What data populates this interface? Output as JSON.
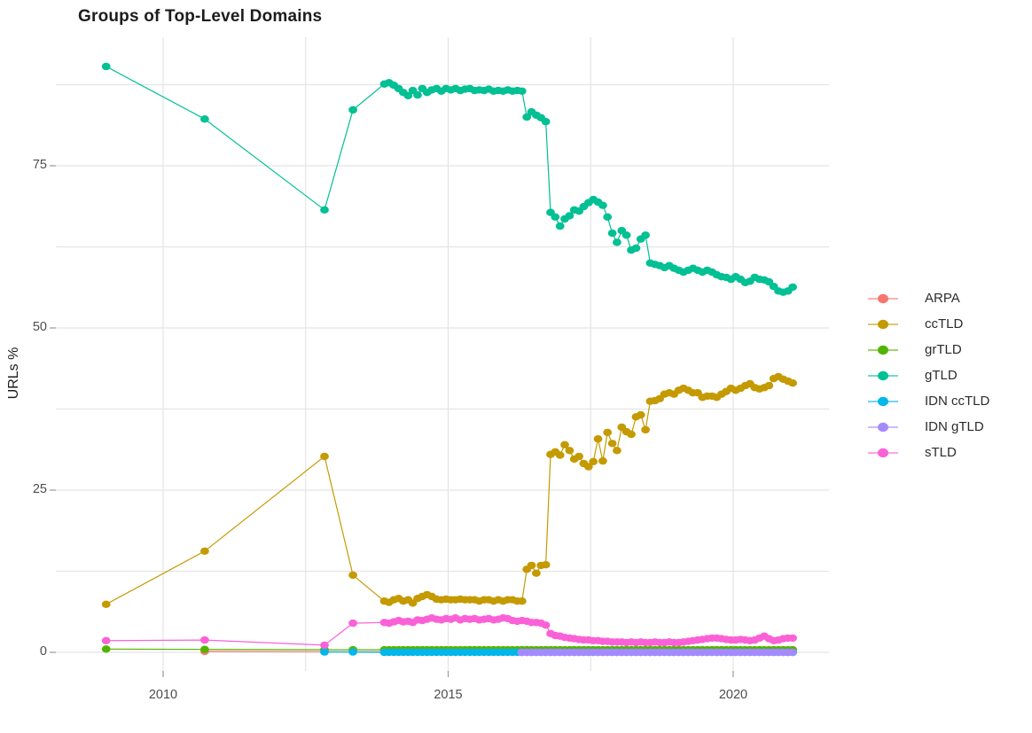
{
  "chart_data": {
    "type": "scatter-line",
    "title": "Groups of Top-Level Domains",
    "xlabel": "",
    "ylabel": "URLs %",
    "x_range": [
      2008.6,
      2021.6
    ],
    "y_range": [
      -2,
      95
    ],
    "grid": "on",
    "legend_position": "right",
    "x_ticks": [
      {
        "label": "2010",
        "value": 2010
      },
      {
        "label": "2015",
        "value": 2015
      },
      {
        "label": "2020",
        "value": 2020
      }
    ],
    "x_gridlines": [
      2010,
      2012.5,
      2015,
      2017.5,
      2020
    ],
    "y_ticks": [
      {
        "label": "0",
        "value": 0
      },
      {
        "label": "25",
        "value": 25
      },
      {
        "label": "50",
        "value": 50
      },
      {
        "label": "75",
        "value": 75
      }
    ],
    "y_gridlines": [
      0,
      12.5,
      25,
      37.5,
      50,
      62.5,
      75,
      87.5
    ],
    "series": [
      {
        "name": "ARPA",
        "color": "#F8766D",
        "segments": [
          {
            "points": [
              [
                2010.73,
                0.15
              ],
              [
                2012.83,
                0.1
              ]
            ]
          },
          {
            "x0": 2013.88,
            "dx": 0.0833,
            "n": 87,
            "y_const": 0.1
          }
        ]
      },
      {
        "name": "ccTLD",
        "color": "#C49A00",
        "segments": [
          {
            "points": [
              [
                2009.0,
                7.4
              ],
              [
                2010.73,
                15.6
              ],
              [
                2012.83,
                30.2
              ],
              [
                2013.33,
                11.9
              ]
            ]
          },
          {
            "x0": 2013.88,
            "dx": 0.0833,
            "y": [
              7.9,
              7.7,
              8.1,
              8.3,
              7.9,
              8.1,
              7.6,
              8.3,
              8.6,
              8.9,
              8.6,
              8.2,
              8.1,
              8.2,
              8.1,
              8.1,
              8.2,
              8.1,
              8.1,
              8.1,
              7.9,
              8.1,
              8.1,
              7.9,
              8.1,
              7.9,
              8.1,
              8.1,
              7.9,
              7.9,
              12.8,
              13.4,
              12.2,
              13.4,
              13.5,
              30.5,
              30.9,
              30.4,
              32.0,
              31.1,
              29.8,
              30.2,
              29.1,
              28.6,
              29.4,
              32.9,
              29.5,
              33.9,
              32.2,
              31.1,
              34.7,
              34.0,
              33.6,
              36.3,
              36.6,
              34.3,
              38.7,
              38.8,
              39.1,
              39.8,
              40.0,
              39.8,
              40.4,
              40.7,
              40.4,
              40.0,
              40.0,
              39.3,
              39.5,
              39.5,
              39.3,
              39.8,
              40.2,
              40.7,
              40.4,
              40.7,
              41.1,
              41.4,
              40.8,
              40.6,
              40.8,
              41.1,
              42.2,
              42.5,
              42.1,
              41.8,
              41.5
            ]
          }
        ]
      },
      {
        "name": "grTLD",
        "color": "#53B400",
        "segments": [
          {
            "points": [
              [
                2009.0,
                0.5
              ],
              [
                2010.73,
                0.45
              ],
              [
                2012.83,
                0.4
              ],
              [
                2013.33,
                0.4
              ]
            ]
          },
          {
            "x0": 2013.88,
            "dx": 0.0833,
            "n": 87,
            "y_const": 0.4
          }
        ]
      },
      {
        "name": "gTLD",
        "color": "#00C094",
        "segments": [
          {
            "points": [
              [
                2009.0,
                90.3
              ],
              [
                2010.73,
                82.2
              ],
              [
                2012.83,
                68.2
              ],
              [
                2013.33,
                83.6
              ]
            ]
          },
          {
            "x0": 2013.88,
            "dx": 0.0833,
            "y": [
              87.6,
              87.8,
              87.4,
              86.9,
              86.3,
              85.8,
              86.6,
              85.9,
              86.9,
              86.3,
              86.7,
              86.9,
              86.5,
              86.9,
              86.7,
              86.9,
              86.6,
              86.8,
              86.9,
              86.6,
              86.7,
              86.6,
              86.8,
              86.5,
              86.6,
              86.5,
              86.7,
              86.5,
              86.6,
              86.5,
              82.5,
              83.3,
              82.8,
              82.4,
              81.8,
              67.8,
              67.1,
              65.7,
              66.8,
              67.3,
              68.2,
              68.0,
              68.7,
              69.3,
              69.8,
              69.4,
              68.9,
              67.1,
              64.6,
              63.2,
              65.0,
              64.3,
              62.0,
              62.3,
              63.7,
              64.3,
              60.0,
              59.8,
              59.6,
              59.3,
              59.6,
              59.2,
              58.9,
              58.6,
              58.9,
              59.2,
              58.9,
              58.6,
              58.9,
              58.6,
              58.2,
              57.9,
              57.8,
              57.5,
              57.9,
              57.5,
              57.0,
              57.2,
              57.8,
              57.5,
              57.4,
              57.1,
              56.4,
              55.7,
              55.5,
              55.7,
              56.3
            ]
          }
        ]
      },
      {
        "name": "IDN ccTLD",
        "color": "#00B6EB",
        "segments": [
          {
            "points": [
              [
                2012.83,
                0.05
              ],
              [
                2013.33,
                0.05
              ]
            ]
          },
          {
            "x0": 2013.88,
            "dx": 0.0833,
            "n": 87,
            "y_const": 0.0
          }
        ]
      },
      {
        "name": "IDN gTLD",
        "color": "#A58AFF",
        "segments": [
          {
            "x0": 2016.29,
            "dx": 0.0833,
            "n": 58,
            "y_const": 0.0
          }
        ]
      },
      {
        "name": "sTLD",
        "color": "#FB61D7",
        "segments": [
          {
            "points": [
              [
                2009.0,
                1.8
              ],
              [
                2010.73,
                1.9
              ],
              [
                2012.83,
                1.1
              ],
              [
                2013.33,
                4.5
              ]
            ]
          },
          {
            "x0": 2013.88,
            "dx": 0.0833,
            "y": [
              4.6,
              4.5,
              4.7,
              4.9,
              4.7,
              4.8,
              4.6,
              5.0,
              4.9,
              5.1,
              5.3,
              5.1,
              5.0,
              5.2,
              5.1,
              5.3,
              5.0,
              5.2,
              5.1,
              5.2,
              5.0,
              5.1,
              5.2,
              5.0,
              5.1,
              5.3,
              5.2,
              4.9,
              4.8,
              4.9,
              4.8,
              4.6,
              4.6,
              4.5,
              4.2,
              2.9,
              2.6,
              2.5,
              2.3,
              2.2,
              2.1,
              2.0,
              1.9,
              1.9,
              1.8,
              1.8,
              1.7,
              1.7,
              1.6,
              1.6,
              1.6,
              1.5,
              1.6,
              1.5,
              1.6,
              1.5,
              1.5,
              1.6,
              1.5,
              1.5,
              1.6,
              1.5,
              1.5,
              1.6,
              1.7,
              1.8,
              1.9,
              2.0,
              2.1,
              2.2,
              2.2,
              2.1,
              2.0,
              1.9,
              1.9,
              2.0,
              1.9,
              1.8,
              1.9,
              2.2,
              2.5,
              2.1,
              1.8,
              1.9,
              2.1,
              2.2,
              2.2
            ]
          }
        ]
      }
    ]
  }
}
